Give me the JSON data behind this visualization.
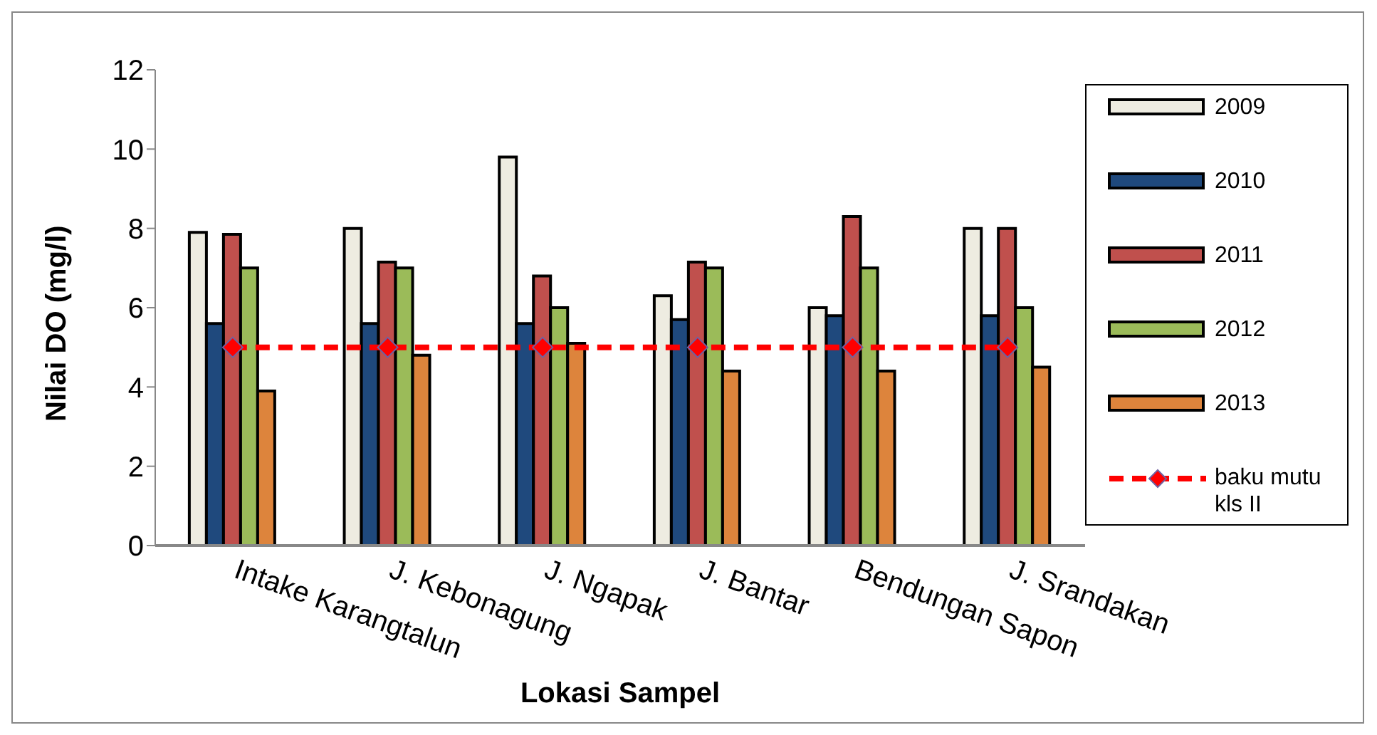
{
  "chart_data": {
    "type": "bar",
    "xlabel": "Lokasi Sampel",
    "ylabel": "Nilai DO (mg/l)",
    "categories": [
      "Intake Karangtalun",
      "J. Kebonagung",
      "J. Ngapak",
      "J. Bantar",
      "Bendungan Sapon",
      "J. Srandakan"
    ],
    "series": [
      {
        "name": "2009",
        "color": "#eeece1",
        "values": [
          7.9,
          8.0,
          9.8,
          6.3,
          6.0,
          8.0
        ]
      },
      {
        "name": "2010",
        "color": "#1f497d",
        "values": [
          5.6,
          5.6,
          5.6,
          5.7,
          5.8,
          5.8
        ]
      },
      {
        "name": "2011",
        "color": "#c0504d",
        "values": [
          7.85,
          7.15,
          6.8,
          7.15,
          8.3,
          8.0
        ]
      },
      {
        "name": "2012",
        "color": "#9bbb59",
        "values": [
          7.0,
          7.0,
          6.0,
          7.0,
          7.0,
          6.0
        ]
      },
      {
        "name": "2013",
        "color": "#dd843c",
        "values": [
          3.9,
          4.8,
          5.1,
          4.4,
          4.4,
          4.5
        ]
      },
      {
        "name": "baku mutu kls II",
        "type": "line",
        "color": "#ff0000",
        "values": [
          5,
          5,
          5,
          5,
          5,
          5
        ],
        "marker": "diamond",
        "line_style": "dashed"
      }
    ],
    "ylim": [
      0,
      12
    ],
    "yticks": [
      0,
      2,
      4,
      6,
      8,
      10,
      12
    ],
    "legend": "right"
  }
}
